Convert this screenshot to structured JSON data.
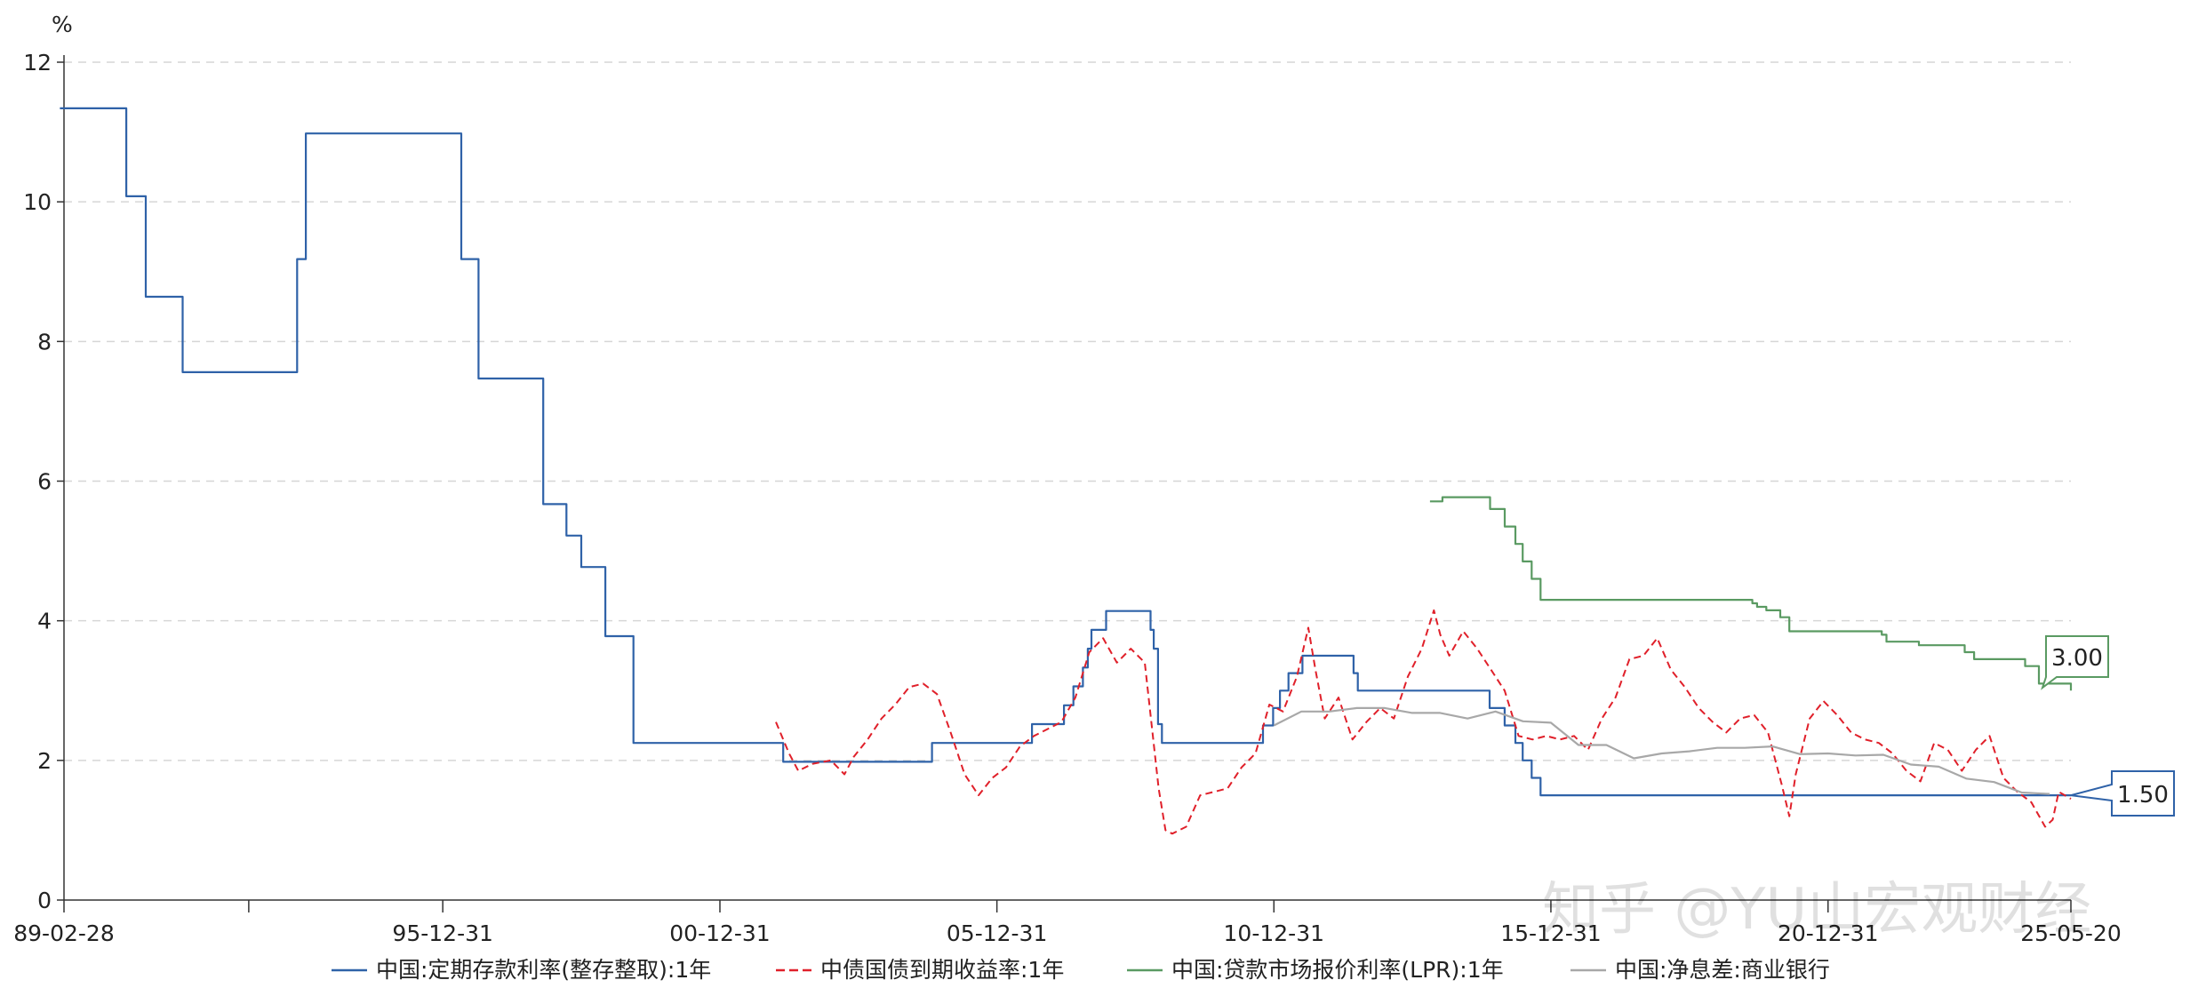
{
  "chart_data": {
    "type": "line",
    "ylabel": "%",
    "ylim": [
      0,
      12
    ],
    "yticks": [
      0,
      2,
      4,
      6,
      8,
      10,
      12
    ],
    "xlim": [
      "1989-02-28",
      "2025-05-20"
    ],
    "xticks": [
      {
        "date": "1989-02-28",
        "label": "89-02-28"
      },
      {
        "date": "1995-12-31",
        "label": "95-12-31"
      },
      {
        "date": "2000-12-31",
        "label": "00-12-31"
      },
      {
        "date": "2005-12-31",
        "label": "05-12-31"
      },
      {
        "date": "2010-12-31",
        "label": "10-12-31"
      },
      {
        "date": "2015-12-31",
        "label": "15-12-31"
      },
      {
        "date": "2020-12-31",
        "label": "20-12-31"
      },
      {
        "date": "2025-05-20",
        "label": "25-05-20"
      }
    ],
    "grid": true,
    "legend_position": "bottom",
    "callouts": [
      {
        "series": 2,
        "text": "3.00"
      },
      {
        "series": 0,
        "text": "1.50"
      }
    ],
    "series": [
      {
        "name": "中国:定期存款利率(整存整取):1年",
        "color": "#2f62a8",
        "style": "step",
        "points": [
          [
            "1989-02-01",
            11.34
          ],
          [
            "1990-04-15",
            10.08
          ],
          [
            "1990-08-21",
            8.64
          ],
          [
            "1991-04-21",
            7.56
          ],
          [
            "1993-05-15",
            9.18
          ],
          [
            "1993-07-11",
            10.98
          ],
          [
            "1996-05-01",
            9.18
          ],
          [
            "1996-08-23",
            7.47
          ],
          [
            "1997-10-23",
            5.67
          ],
          [
            "1998-03-25",
            5.22
          ],
          [
            "1998-07-01",
            4.77
          ],
          [
            "1998-12-07",
            3.78
          ],
          [
            "1999-06-10",
            2.25
          ],
          [
            "2002-02-21",
            1.98
          ],
          [
            "2004-10-29",
            2.25
          ],
          [
            "2006-08-19",
            2.52
          ],
          [
            "2007-03-18",
            2.79
          ],
          [
            "2007-05-19",
            3.06
          ],
          [
            "2007-07-21",
            3.33
          ],
          [
            "2007-08-22",
            3.6
          ],
          [
            "2007-09-15",
            3.87
          ],
          [
            "2007-12-21",
            4.14
          ],
          [
            "2008-10-09",
            3.87
          ],
          [
            "2008-10-30",
            3.6
          ],
          [
            "2008-11-27",
            2.52
          ],
          [
            "2008-12-23",
            2.25
          ],
          [
            "2010-10-20",
            2.5
          ],
          [
            "2010-12-26",
            2.75
          ],
          [
            "2011-02-09",
            3.0
          ],
          [
            "2011-04-06",
            3.25
          ],
          [
            "2011-07-07",
            3.5
          ],
          [
            "2012-06-08",
            3.25
          ],
          [
            "2012-07-06",
            3.0
          ],
          [
            "2014-11-22",
            2.75
          ],
          [
            "2015-03-01",
            2.5
          ],
          [
            "2015-05-11",
            2.25
          ],
          [
            "2015-06-28",
            2.0
          ],
          [
            "2015-08-26",
            1.75
          ],
          [
            "2015-10-24",
            1.5
          ],
          [
            "2025-05-20",
            1.5
          ]
        ]
      },
      {
        "name": "中债国债到期收益率:1年",
        "color": "#e0202a",
        "style": "dashed",
        "points": [
          [
            "2002-01-04",
            2.55
          ],
          [
            "2002-04-01",
            2.1
          ],
          [
            "2002-06-01",
            1.85
          ],
          [
            "2002-09-01",
            1.95
          ],
          [
            "2003-01-01",
            2.0
          ],
          [
            "2003-04-01",
            1.8
          ],
          [
            "2003-06-01",
            2.05
          ],
          [
            "2003-09-01",
            2.3
          ],
          [
            "2003-12-01",
            2.6
          ],
          [
            "2004-03-01",
            2.8
          ],
          [
            "2004-06-01",
            3.05
          ],
          [
            "2004-09-01",
            3.1
          ],
          [
            "2004-12-01",
            2.95
          ],
          [
            "2005-03-01",
            2.4
          ],
          [
            "2005-06-01",
            1.8
          ],
          [
            "2005-09-01",
            1.5
          ],
          [
            "2005-12-01",
            1.75
          ],
          [
            "2006-03-01",
            1.9
          ],
          [
            "2006-06-01",
            2.2
          ],
          [
            "2006-09-01",
            2.35
          ],
          [
            "2006-12-01",
            2.45
          ],
          [
            "2007-03-01",
            2.55
          ],
          [
            "2007-06-01",
            2.9
          ],
          [
            "2007-09-01",
            3.55
          ],
          [
            "2007-12-01",
            3.75
          ],
          [
            "2008-03-01",
            3.4
          ],
          [
            "2008-06-01",
            3.6
          ],
          [
            "2008-09-01",
            3.4
          ],
          [
            "2008-12-01",
            1.6
          ],
          [
            "2009-01-15",
            1.0
          ],
          [
            "2009-03-01",
            0.95
          ],
          [
            "2009-06-01",
            1.05
          ],
          [
            "2009-09-01",
            1.5
          ],
          [
            "2009-12-01",
            1.55
          ],
          [
            "2010-03-01",
            1.6
          ],
          [
            "2010-06-01",
            1.9
          ],
          [
            "2010-09-01",
            2.1
          ],
          [
            "2010-12-01",
            2.8
          ],
          [
            "2011-03-01",
            2.7
          ],
          [
            "2011-06-01",
            3.2
          ],
          [
            "2011-08-15",
            3.9
          ],
          [
            "2011-10-01",
            3.3
          ],
          [
            "2011-12-01",
            2.6
          ],
          [
            "2012-03-01",
            2.9
          ],
          [
            "2012-06-01",
            2.3
          ],
          [
            "2012-09-01",
            2.55
          ],
          [
            "2012-12-01",
            2.75
          ],
          [
            "2013-03-01",
            2.6
          ],
          [
            "2013-06-01",
            3.2
          ],
          [
            "2013-09-01",
            3.6
          ],
          [
            "2013-11-20",
            4.15
          ],
          [
            "2014-01-01",
            3.8
          ],
          [
            "2014-03-01",
            3.5
          ],
          [
            "2014-06-01",
            3.85
          ],
          [
            "2014-09-01",
            3.6
          ],
          [
            "2014-12-01",
            3.3
          ],
          [
            "2015-03-01",
            3.0
          ],
          [
            "2015-06-01",
            2.35
          ],
          [
            "2015-09-01",
            2.3
          ],
          [
            "2015-12-01",
            2.35
          ],
          [
            "2016-03-01",
            2.3
          ],
          [
            "2016-06-01",
            2.35
          ],
          [
            "2016-09-01",
            2.15
          ],
          [
            "2016-12-01",
            2.6
          ],
          [
            "2017-03-01",
            2.9
          ],
          [
            "2017-06-01",
            3.45
          ],
          [
            "2017-09-01",
            3.5
          ],
          [
            "2017-12-01",
            3.75
          ],
          [
            "2018-03-01",
            3.3
          ],
          [
            "2018-06-01",
            3.05
          ],
          [
            "2018-09-01",
            2.75
          ],
          [
            "2018-12-01",
            2.55
          ],
          [
            "2019-03-01",
            2.4
          ],
          [
            "2019-06-01",
            2.6
          ],
          [
            "2019-09-01",
            2.65
          ],
          [
            "2019-12-01",
            2.4
          ],
          [
            "2020-03-01",
            1.65
          ],
          [
            "2020-04-20",
            1.2
          ],
          [
            "2020-06-01",
            1.8
          ],
          [
            "2020-09-01",
            2.6
          ],
          [
            "2020-12-01",
            2.85
          ],
          [
            "2021-03-01",
            2.65
          ],
          [
            "2021-06-01",
            2.4
          ],
          [
            "2021-09-01",
            2.3
          ],
          [
            "2021-12-01",
            2.25
          ],
          [
            "2022-03-01",
            2.1
          ],
          [
            "2022-06-01",
            1.85
          ],
          [
            "2022-09-01",
            1.7
          ],
          [
            "2022-12-01",
            2.25
          ],
          [
            "2023-03-01",
            2.15
          ],
          [
            "2023-06-01",
            1.85
          ],
          [
            "2023-09-01",
            2.15
          ],
          [
            "2023-12-01",
            2.35
          ],
          [
            "2024-03-01",
            1.75
          ],
          [
            "2024-06-01",
            1.55
          ],
          [
            "2024-09-01",
            1.4
          ],
          [
            "2024-12-01",
            1.05
          ],
          [
            "2025-01-20",
            1.15
          ],
          [
            "2025-03-01",
            1.55
          ],
          [
            "2025-05-20",
            1.45
          ]
        ]
      },
      {
        "name": "中国:贷款市场报价利率(LPR):1年",
        "color": "#5a9a62",
        "style": "step",
        "points": [
          [
            "2013-10-25",
            5.71
          ],
          [
            "2014-01-15",
            5.77
          ],
          [
            "2014-11-25",
            5.6
          ],
          [
            "2015-03-02",
            5.35
          ],
          [
            "2015-05-11",
            5.1
          ],
          [
            "2015-06-28",
            4.85
          ],
          [
            "2015-08-26",
            4.6
          ],
          [
            "2015-10-24",
            4.3
          ],
          [
            "2019-08-20",
            4.25
          ],
          [
            "2019-09-20",
            4.2
          ],
          [
            "2019-11-20",
            4.15
          ],
          [
            "2020-02-20",
            4.05
          ],
          [
            "2020-04-20",
            3.85
          ],
          [
            "2021-12-20",
            3.8
          ],
          [
            "2022-01-20",
            3.7
          ],
          [
            "2022-08-22",
            3.65
          ],
          [
            "2023-06-20",
            3.55
          ],
          [
            "2023-08-21",
            3.45
          ],
          [
            "2024-07-22",
            3.35
          ],
          [
            "2024-10-21",
            3.1
          ],
          [
            "2025-05-20",
            3.0
          ]
        ]
      },
      {
        "name": "中国:净息差:商业银行",
        "color": "#a8a8a8",
        "style": "line",
        "points": [
          [
            "2010-12-31",
            2.5
          ],
          [
            "2011-06-30",
            2.7
          ],
          [
            "2011-12-31",
            2.7
          ],
          [
            "2012-06-30",
            2.75
          ],
          [
            "2012-12-31",
            2.75
          ],
          [
            "2013-06-30",
            2.68
          ],
          [
            "2013-12-31",
            2.68
          ],
          [
            "2014-06-30",
            2.6
          ],
          [
            "2014-12-31",
            2.7
          ],
          [
            "2015-06-30",
            2.56
          ],
          [
            "2015-12-31",
            2.54
          ],
          [
            "2016-06-30",
            2.22
          ],
          [
            "2016-12-31",
            2.22
          ],
          [
            "2017-06-30",
            2.03
          ],
          [
            "2017-12-31",
            2.1
          ],
          [
            "2018-06-30",
            2.13
          ],
          [
            "2018-12-31",
            2.18
          ],
          [
            "2019-06-30",
            2.18
          ],
          [
            "2019-12-31",
            2.2
          ],
          [
            "2020-06-30",
            2.09
          ],
          [
            "2020-12-31",
            2.1
          ],
          [
            "2021-06-30",
            2.07
          ],
          [
            "2021-12-31",
            2.08
          ],
          [
            "2022-06-30",
            1.94
          ],
          [
            "2022-12-31",
            1.91
          ],
          [
            "2023-06-30",
            1.74
          ],
          [
            "2023-12-31",
            1.69
          ],
          [
            "2024-06-30",
            1.54
          ],
          [
            "2024-12-31",
            1.52
          ]
        ]
      }
    ]
  },
  "watermark": {
    "text": "知乎 @YU山宏观财经"
  }
}
